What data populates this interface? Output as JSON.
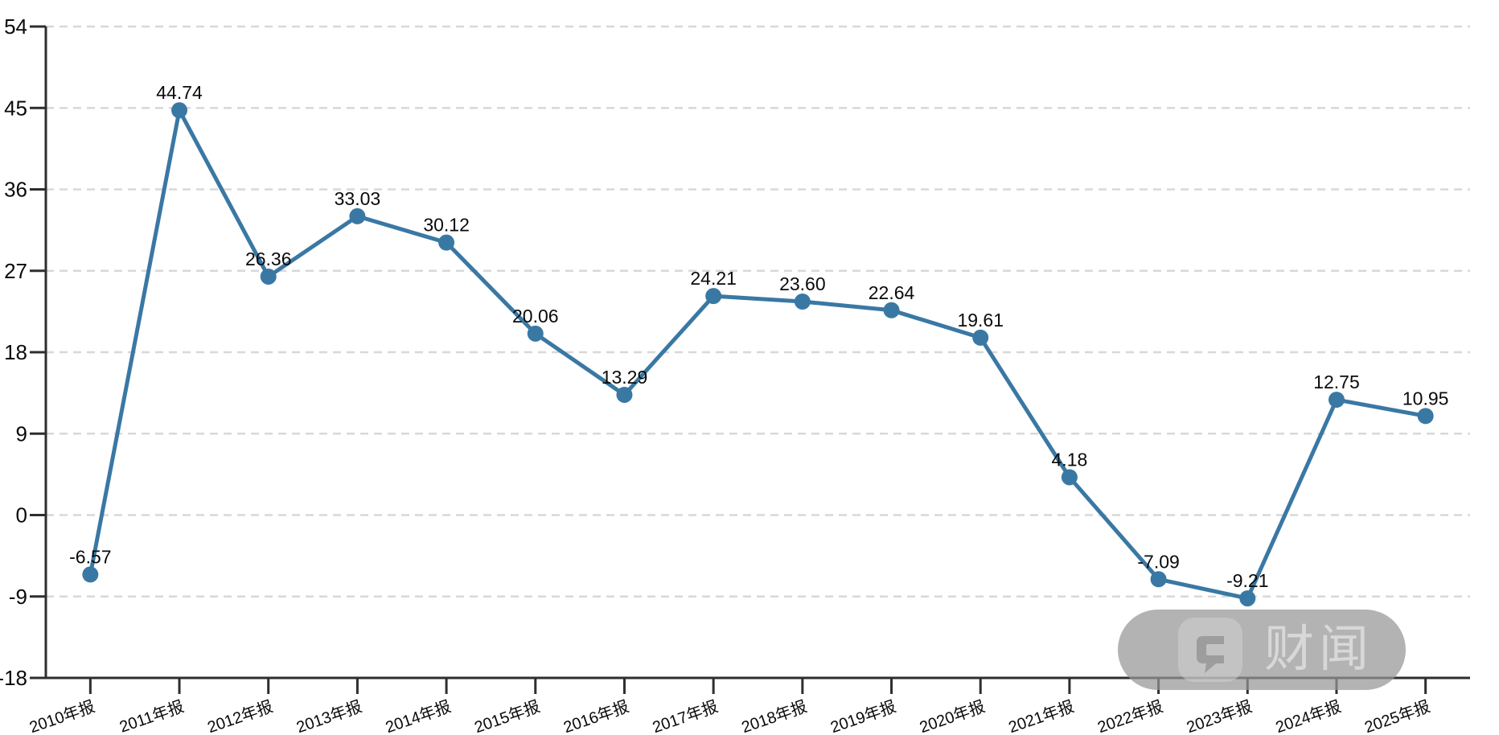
{
  "watermark": {
    "label": "财闻",
    "icon": "chat-bubble-icon"
  },
  "chart_data": {
    "type": "line",
    "title": "",
    "categories": [
      "2010年报",
      "2011年报",
      "2012年报",
      "2013年报",
      "2014年报",
      "2015年报",
      "2016年报",
      "2017年报",
      "2018年报",
      "2019年报",
      "2020年报",
      "2021年报",
      "2022年报",
      "2023年报",
      "2024年报",
      "2025年报"
    ],
    "series": [
      {
        "name": "",
        "values": [
          -6.57,
          44.74,
          26.36,
          33.03,
          30.12,
          20.06,
          13.29,
          24.21,
          23.6,
          22.64,
          19.61,
          4.18,
          -7.09,
          -9.21,
          12.75,
          10.95
        ],
        "value_labels": [
          "-6.57",
          "44.74",
          "26.36",
          "33.03",
          "30.12",
          "20.06",
          "13.29",
          "24.21",
          "23.60",
          "22.64",
          "19.61",
          "4.18",
          "-7.09",
          "-9.21",
          "12.75",
          "10.95"
        ]
      }
    ],
    "xlabel": "",
    "ylabel": "",
    "x_axis": {
      "label_rotation_deg": -19
    },
    "y_axis": {
      "ticks": [
        54,
        45,
        36,
        27,
        18,
        9,
        0,
        -9,
        -18
      ],
      "min": -18,
      "max": 54
    },
    "grid": {
      "horizontal_gridlines": true,
      "style": "dashed",
      "vertical_gridlines": false
    },
    "legend": {
      "visible": false
    },
    "colors": {
      "line": "#3a78a4",
      "marker": "#3a78a4",
      "gridline": "#d8d8d8",
      "axis": "#2e2e2e",
      "tick_text": "#0a0a0a",
      "data_label_text": "#0a0a0a"
    }
  }
}
